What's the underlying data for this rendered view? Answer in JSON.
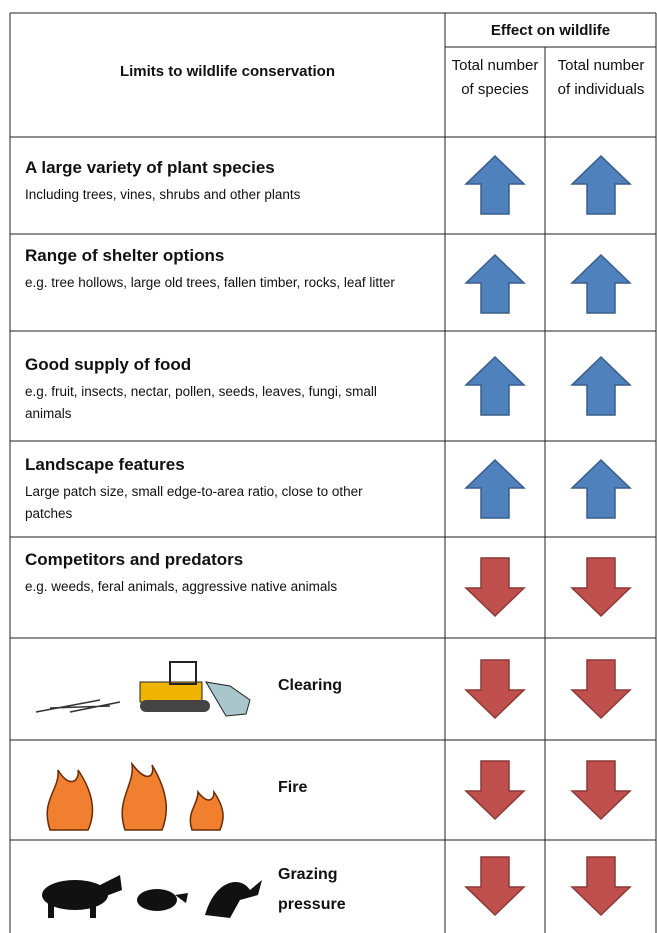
{
  "header": {
    "limits": "Limits to wildlife conservation",
    "effect": "Effect on wildlife",
    "columns": [
      "Total number of species",
      "Total number of individuals"
    ]
  },
  "rows": [
    {
      "title": "A large variety of plant species",
      "description": "Including trees, vines, shrubs and other plants"
    },
    {
      "title": "Range of shelter options",
      "description": "e.g. tree hollows, large old trees, fallen timber, rocks, leaf litter"
    },
    {
      "title": "Good supply of food",
      "description": "e.g. fruit, insects, nectar, pollen, seeds, leaves, fungi, small animals"
    },
    {
      "title": "Landscape features",
      "description": "Large patch size, small edge-to-area ratio, close to other patches"
    },
    {
      "title": "Competitors and predators",
      "description": "e.g. weeds, feral animals, aggressive native animals"
    },
    {
      "label": "Clearing"
    },
    {
      "label": "Fire"
    },
    {
      "label": "Grazing pressure"
    }
  ]
}
